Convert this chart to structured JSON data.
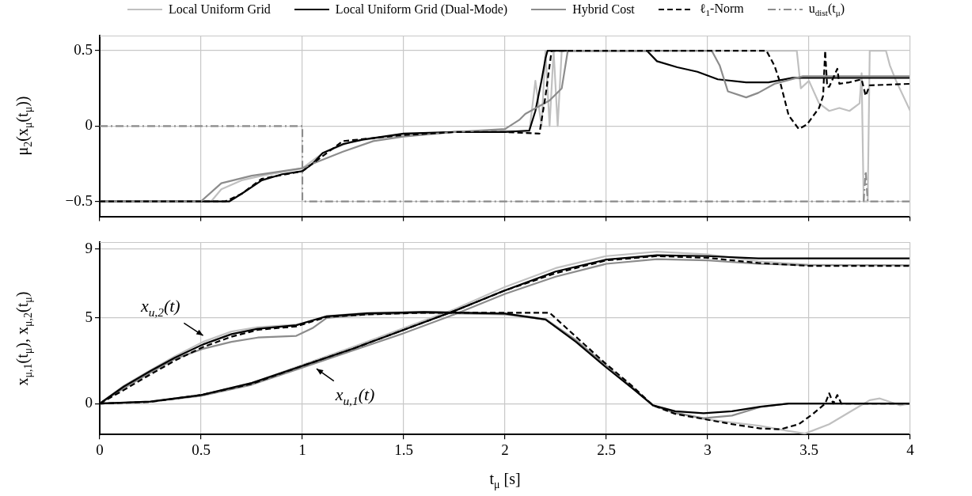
{
  "chart_data": [
    {
      "type": "line",
      "ylabel": "μ$_{2}$(x$_{μ}$(t$_{μ}$))",
      "xlim": [
        0,
        4
      ],
      "xticks": [
        0,
        0.5,
        1,
        1.5,
        2,
        2.5,
        3,
        3.5,
        4
      ],
      "ylim": [
        -0.6,
        0.6
      ],
      "yticks": [
        {
          "value": -0.5,
          "label": "−0.5"
        },
        0,
        0.5
      ],
      "grid": true,
      "legend": "top",
      "tick_labels": "y",
      "series": [
        {
          "name": "Local Uniform Grid",
          "color": "#c0c0c0",
          "line_style": "solid",
          "x": [
            0,
            0.55,
            0.6,
            0.7,
            0.8,
            1.0,
            1.1,
            1.25,
            1.5,
            1.75,
            2.0,
            2.12,
            2.15,
            2.18,
            2.2,
            2.22,
            2.24,
            2.26,
            2.28,
            3.44,
            3.46,
            3.5,
            3.55,
            3.6,
            3.65,
            3.7,
            3.75,
            3.76,
            3.77,
            3.79,
            3.8,
            3.88,
            3.9,
            3.93,
            4.0
          ],
          "values": [
            -0.5,
            -0.5,
            -0.42,
            -0.36,
            -0.33,
            -0.28,
            -0.18,
            -0.1,
            -0.06,
            -0.04,
            -0.03,
            -0.04,
            0.3,
            0,
            0.5,
            0,
            0.5,
            0,
            0.5,
            0.5,
            0.25,
            0.3,
            0.15,
            0.1,
            0.12,
            0.1,
            0.15,
            0.35,
            -0.5,
            -0.5,
            0.5,
            0.5,
            0.4,
            0.3,
            0.1
          ]
        },
        {
          "name": "Local Uniform Grid (Dual-Mode)",
          "color": "#000000",
          "line_style": "solid",
          "x": [
            0,
            0.64,
            0.7,
            0.8,
            0.9,
            1.0,
            1.05,
            1.1,
            1.2,
            1.3,
            1.5,
            1.75,
            2.0,
            2.12,
            2.15,
            2.18,
            2.2,
            2.21,
            2.7,
            2.75,
            2.85,
            2.95,
            3.05,
            3.19,
            3.3,
            3.42,
            3.6,
            4.0
          ],
          "values": [
            -0.5,
            -0.5,
            -0.45,
            -0.36,
            -0.32,
            -0.3,
            -0.25,
            -0.18,
            -0.12,
            -0.09,
            -0.05,
            -0.04,
            -0.04,
            -0.03,
            0.1,
            0.3,
            0.45,
            0.5,
            0.5,
            0.43,
            0.39,
            0.36,
            0.31,
            0.29,
            0.29,
            0.32,
            0.32,
            0.32
          ]
        },
        {
          "name": "Hybrid Cost",
          "color": "#8c8c8c",
          "line_style": "solid",
          "x": [
            0,
            0.5,
            0.6,
            0.75,
            1.0,
            1.05,
            1.2,
            1.35,
            1.5,
            1.75,
            2.0,
            2.07,
            2.1,
            2.22,
            2.28,
            2.31,
            3.02,
            3.06,
            3.1,
            3.19,
            3.25,
            3.33,
            3.47,
            4.0
          ],
          "values": [
            -0.5,
            -0.5,
            -0.38,
            -0.33,
            -0.28,
            -0.25,
            -0.17,
            -0.1,
            -0.07,
            -0.04,
            -0.02,
            0.04,
            0.08,
            0.17,
            0.25,
            0.5,
            0.5,
            0.4,
            0.23,
            0.19,
            0.22,
            0.28,
            0.33,
            0.33
          ]
        },
        {
          "name": "ℓ$_{1}$-Norm",
          "color": "#000000",
          "line_style": "dashed",
          "x": [
            0,
            0.62,
            0.7,
            0.8,
            1.0,
            1.1,
            1.2,
            1.5,
            1.75,
            2.0,
            2.17,
            2.2,
            2.23,
            3.29,
            3.33,
            3.36,
            3.4,
            3.45,
            3.49,
            3.55,
            3.57,
            3.58,
            3.59,
            3.6,
            3.64,
            3.65,
            3.7,
            3.76,
            3.78,
            3.8,
            4.0
          ],
          "values": [
            -0.5,
            -0.5,
            -0.45,
            -0.35,
            -0.3,
            -0.2,
            -0.1,
            -0.06,
            -0.04,
            -0.04,
            -0.05,
            0.2,
            0.5,
            0.5,
            0.4,
            0.28,
            0.07,
            -0.02,
            0.01,
            0.12,
            0.2,
            0.5,
            0.26,
            0.26,
            0.38,
            0.28,
            0.29,
            0.31,
            0.2,
            0.27,
            0.28
          ]
        },
        {
          "name": "u$_{dist}$(t$_{μ}$)",
          "color": "#8c8c8c",
          "line_style": "dashdot",
          "x": [
            0,
            1.0,
            1.0,
            3.77,
            3.78,
            3.79,
            4.0
          ],
          "values": [
            0,
            0,
            -0.5,
            -0.5,
            -0.3,
            -0.5,
            -0.5
          ]
        }
      ]
    },
    {
      "type": "line",
      "xlabel": "t$_{μ}$ [s]",
      "ylabel": "x$_{μ,1}$(t$_{μ}$), x$_{μ,2}$(t$_{μ}$)",
      "xlim": [
        0,
        4
      ],
      "xticks": [
        0,
        0.5,
        1,
        1.5,
        2,
        2.5,
        3,
        3.5,
        4
      ],
      "ylim": [
        -1.8,
        9.4
      ],
      "yticks": [
        0,
        5,
        9
      ],
      "grid": true,
      "annotations": [
        "x$_{u,2}$(t)",
        "x$_{u,1}$(t)"
      ],
      "series": [
        {
          "color": "#c0c0c0",
          "line_style": "solid",
          "x": [
            0,
            0.25,
            0.5,
            0.75,
            1.0,
            1.25,
            1.5,
            1.75,
            2.0,
            2.25,
            2.5,
            2.75,
            3.0,
            3.25,
            3.5,
            4.0
          ],
          "values": [
            0,
            0.12,
            0.5,
            1.2,
            2.25,
            3.3,
            4.4,
            5.5,
            6.8,
            7.9,
            8.6,
            8.86,
            8.7,
            8.3,
            8.1,
            8.05
          ]
        },
        {
          "color": "#c0c0c0",
          "line_style": "solid",
          "x": [
            0,
            0.12,
            0.25,
            0.37,
            0.51,
            0.65,
            0.78,
            0.97,
            1.05,
            1.12,
            1.32,
            1.6,
            2.0,
            2.2,
            2.35,
            2.49,
            2.63,
            2.73,
            2.84,
            2.98,
            3.12,
            3.26,
            3.4,
            3.48,
            3.6,
            3.7,
            3.8,
            3.85,
            3.95,
            4.0
          ],
          "values": [
            0,
            1.05,
            1.95,
            2.75,
            3.6,
            4.2,
            4.45,
            4.6,
            4.85,
            5.1,
            5.3,
            5.35,
            5.25,
            4.95,
            3.7,
            2.3,
            0.95,
            -0.1,
            -0.5,
            -0.9,
            -1.1,
            -1.3,
            -1.6,
            -1.75,
            -1.2,
            -0.5,
            0.2,
            0.3,
            -0.1,
            0
          ]
        },
        {
          "color": "#8c8c8c",
          "line_style": "solid",
          "x": [
            0,
            0.25,
            0.5,
            0.75,
            1.0,
            1.25,
            1.5,
            1.75,
            2.0,
            2.25,
            2.5,
            2.75,
            3.0,
            3.25,
            3.5,
            4.0
          ],
          "values": [
            0,
            0.1,
            0.45,
            1.1,
            2.1,
            3.1,
            4.1,
            5.2,
            6.4,
            7.4,
            8.15,
            8.42,
            8.35,
            8.15,
            8.07,
            8.07
          ]
        },
        {
          "color": "#8c8c8c",
          "line_style": "solid",
          "x": [
            0,
            0.12,
            0.25,
            0.37,
            0.51,
            0.65,
            0.78,
            0.97,
            1.05,
            1.12,
            1.32,
            1.6,
            2.0,
            2.2,
            2.35,
            2.49,
            2.63,
            2.73,
            2.84,
            2.98,
            3.12,
            3.26,
            3.4,
            4.0
          ],
          "values": [
            0,
            0.9,
            1.8,
            2.6,
            3.2,
            3.6,
            3.85,
            3.95,
            4.4,
            5.0,
            5.2,
            5.3,
            5.2,
            4.9,
            3.7,
            2.3,
            0.9,
            -0.1,
            -0.55,
            -0.85,
            -0.7,
            -0.2,
            0,
            0
          ]
        },
        {
          "color": "#000000",
          "line_style": "solid",
          "x": [
            0,
            0.25,
            0.5,
            0.75,
            1.0,
            1.25,
            1.5,
            1.75,
            2.0,
            2.25,
            2.5,
            2.75,
            3.0,
            3.25,
            3.5,
            4.0
          ],
          "values": [
            0,
            0.12,
            0.5,
            1.2,
            2.2,
            3.2,
            4.3,
            5.4,
            6.6,
            7.7,
            8.4,
            8.65,
            8.6,
            8.47,
            8.47,
            8.47
          ]
        },
        {
          "color": "#000000",
          "line_style": "solid",
          "x": [
            0,
            0.12,
            0.25,
            0.37,
            0.51,
            0.65,
            0.78,
            0.97,
            1.05,
            1.12,
            1.32,
            1.6,
            2.0,
            2.2,
            2.35,
            2.49,
            2.63,
            2.73,
            2.84,
            2.98,
            3.12,
            3.26,
            3.4,
            4.0
          ],
          "values": [
            0,
            1.0,
            1.9,
            2.67,
            3.45,
            4.05,
            4.36,
            4.57,
            4.85,
            5.09,
            5.26,
            5.34,
            5.25,
            4.9,
            3.6,
            2.2,
            0.88,
            -0.1,
            -0.45,
            -0.56,
            -0.45,
            -0.18,
            0,
            0
          ]
        },
        {
          "color": "#000000",
          "line_style": "dashed",
          "x": [
            0,
            0.25,
            0.5,
            0.75,
            1.0,
            1.25,
            1.5,
            1.75,
            2.0,
            2.25,
            2.5,
            2.75,
            3.0,
            3.25,
            3.5,
            4.0
          ],
          "values": [
            0,
            0.1,
            0.5,
            1.15,
            2.2,
            3.2,
            4.3,
            5.4,
            6.6,
            7.6,
            8.35,
            8.6,
            8.5,
            8.2,
            8.03,
            8.03
          ]
        },
        {
          "color": "#000000",
          "line_style": "dashed",
          "x": [
            0,
            0.12,
            0.25,
            0.37,
            0.51,
            0.65,
            0.78,
            0.97,
            1.05,
            1.12,
            1.32,
            1.6,
            2.0,
            2.22,
            2.35,
            2.49,
            2.63,
            2.73,
            2.84,
            2.98,
            3.12,
            3.26,
            3.36,
            3.45,
            3.52,
            3.58,
            3.6,
            3.62,
            3.64,
            3.66,
            3.7,
            4.0
          ],
          "values": [
            0,
            0.8,
            1.7,
            2.5,
            3.3,
            3.9,
            4.3,
            4.5,
            4.8,
            5.05,
            5.2,
            5.3,
            5.3,
            5.3,
            3.9,
            2.4,
            1.0,
            -0.1,
            -0.6,
            -0.9,
            -1.2,
            -1.45,
            -1.5,
            -1.2,
            -0.6,
            0,
            0.6,
            0,
            0.5,
            0,
            0,
            0
          ]
        }
      ]
    }
  ]
}
